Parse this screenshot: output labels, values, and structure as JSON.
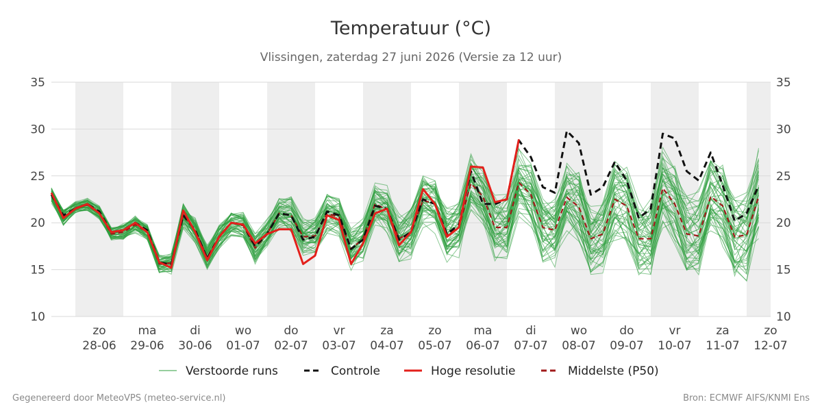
{
  "chart_data": {
    "type": "line",
    "title": "Temperatuur (°C)",
    "subtitle": "Vlissingen, zaterdag 27 juni 2026 (Versie za 12 uur)",
    "ylim": [
      10,
      35
    ],
    "yticks": [
      10,
      15,
      20,
      25,
      30,
      35
    ],
    "y_axis_both_sides": true,
    "grid": true,
    "weekend_day_shading": true,
    "x_start": "2026-06-27 12:00",
    "x_step_hours": 6,
    "x_end": "2026-07-12 12:00",
    "day_labels": [
      {
        "date": "2026-06-28",
        "day": "zo",
        "label": "28-06"
      },
      {
        "date": "2026-06-29",
        "day": "ma",
        "label": "29-06"
      },
      {
        "date": "2026-06-30",
        "day": "di",
        "label": "30-06"
      },
      {
        "date": "2026-07-01",
        "day": "wo",
        "label": "01-07"
      },
      {
        "date": "2026-07-02",
        "day": "do",
        "label": "02-07"
      },
      {
        "date": "2026-07-03",
        "day": "vr",
        "label": "03-07"
      },
      {
        "date": "2026-07-04",
        "day": "za",
        "label": "04-07"
      },
      {
        "date": "2026-07-05",
        "day": "zo",
        "label": "05-07"
      },
      {
        "date": "2026-07-06",
        "day": "ma",
        "label": "06-07"
      },
      {
        "date": "2026-07-07",
        "day": "di",
        "label": "07-07"
      },
      {
        "date": "2026-07-08",
        "day": "wo",
        "label": "08-07"
      },
      {
        "date": "2026-07-09",
        "day": "do",
        "label": "09-07"
      },
      {
        "date": "2026-07-10",
        "day": "vr",
        "label": "10-07"
      },
      {
        "date": "2026-07-11",
        "day": "za",
        "label": "11-07"
      },
      {
        "date": "2026-07-12",
        "day": "zo",
        "label": "12-07"
      }
    ],
    "shaded_days": [
      "2026-06-28",
      "2026-06-30",
      "2026-07-02",
      "2026-07-04",
      "2026-07-06",
      "2026-07-08",
      "2026-07-10",
      "2026-07-12"
    ],
    "series": [
      {
        "name": "Controle",
        "role": "control",
        "color": "#111111",
        "style": "dashed",
        "values": [
          23.0,
          20.8,
          21.5,
          22.0,
          21.2,
          19.0,
          19.2,
          20.0,
          19.2,
          15.8,
          15.5,
          20.8,
          19.2,
          16.2,
          18.5,
          20.0,
          19.8,
          17.5,
          18.8,
          21.0,
          20.8,
          18.2,
          18.5,
          21.2,
          20.8,
          17.2,
          18.2,
          21.8,
          21.5,
          18.2,
          19.0,
          22.5,
          22.0,
          18.8,
          19.8,
          25.5,
          22.0,
          22.0,
          22.5,
          28.8,
          27.0,
          23.8,
          23.2,
          29.8,
          28.5,
          23.0,
          23.8,
          26.5,
          24.5,
          20.5,
          21.5,
          29.5,
          29.0,
          25.5,
          24.5,
          27.5,
          24.0,
          20.2,
          21.0,
          24.0
        ]
      },
      {
        "name": "Hoge resolutie",
        "role": "hires",
        "color": "#e3201b",
        "style": "solid",
        "values": [
          23.2,
          20.5,
          21.5,
          22.0,
          21.0,
          19.0,
          19.2,
          20.0,
          19.0,
          15.8,
          15.2,
          21.3,
          19.0,
          16.0,
          18.5,
          20.0,
          19.8,
          17.8,
          18.8,
          19.3,
          19.3,
          15.6,
          16.5,
          20.8,
          20.3,
          15.6,
          17.8,
          21.0,
          21.5,
          17.6,
          19.0,
          23.6,
          22.0,
          18.5,
          19.5,
          26.0,
          25.9,
          22.2,
          22.5,
          28.9
        ]
      },
      {
        "name": "Middelste (P50)",
        "role": "median",
        "color": "#a01a1a",
        "style": "dashed",
        "values": [
          23.0,
          20.6,
          21.6,
          21.9,
          21.0,
          18.8,
          19.0,
          19.8,
          19.0,
          15.6,
          15.7,
          20.8,
          19.2,
          16.3,
          18.6,
          20.0,
          19.7,
          17.3,
          18.8,
          21.0,
          20.8,
          18.5,
          18.6,
          21.0,
          20.6,
          17.2,
          18.3,
          22.0,
          21.4,
          18.3,
          19.0,
          22.4,
          22.0,
          18.7,
          19.5,
          24.2,
          22.8,
          19.5,
          19.5,
          24.3,
          23.0,
          19.5,
          19.2,
          22.7,
          21.7,
          18.3,
          18.8,
          22.5,
          21.8,
          18.3,
          18.3,
          23.7,
          22.0,
          18.8,
          18.6,
          22.8,
          21.8,
          18.5,
          18.7,
          22.8
        ]
      }
    ],
    "perturbed_runs": {
      "name": "Verstoorde runs",
      "color": "#2e9e3e",
      "count": 50,
      "ensemble_spread": [
        0.8,
        0.8,
        0.6,
        0.6,
        0.7,
        0.7,
        0.8,
        0.8,
        0.8,
        0.9,
        1.0,
        1.2,
        1.2,
        1.2,
        1.3,
        1.3,
        1.3,
        1.5,
        1.6,
        1.6,
        1.7,
        1.7,
        1.8,
        1.8,
        1.9,
        2.0,
        2.1,
        2.2,
        2.3,
        2.3,
        2.4,
        2.5,
        2.6,
        2.6,
        2.7,
        2.8,
        2.9,
        3.0,
        3.0,
        3.1,
        3.2,
        3.3,
        3.3,
        3.4,
        3.5,
        3.5,
        3.6,
        3.7,
        3.7,
        3.8,
        3.9,
        3.9,
        4.0,
        4.0,
        4.1,
        4.1,
        4.2,
        4.2,
        4.3,
        4.3
      ]
    },
    "legend": {
      "placement": "bottom",
      "entries": [
        {
          "label": "Verstoorde runs",
          "color": "#2e9e3e",
          "style": "thin"
        },
        {
          "label": "Controle",
          "color": "#111111",
          "style": "dashed"
        },
        {
          "label": "Hoge resolutie",
          "color": "#e3201b",
          "style": "solid"
        },
        {
          "label": "Middelste (P50)",
          "color": "#a01a1a",
          "style": "dashed"
        }
      ]
    }
  },
  "footer": {
    "left": "Gegenereerd door MeteoVPS (meteo-service.nl)",
    "right": "Bron: ECMWF AIFS/KNMI Ens"
  }
}
